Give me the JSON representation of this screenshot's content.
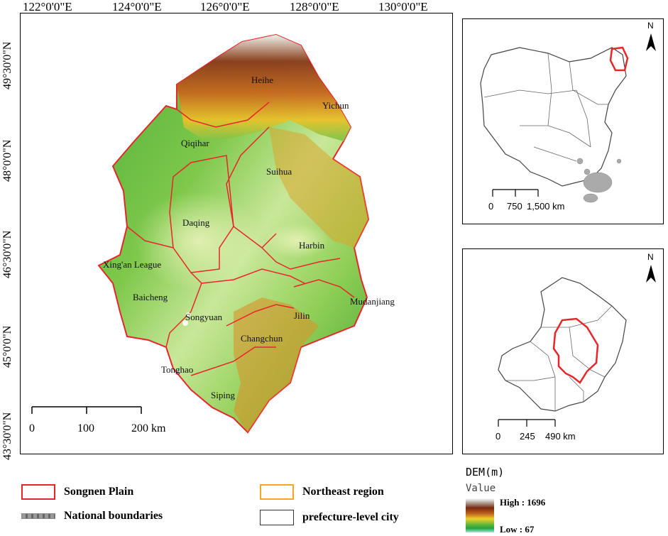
{
  "main_map": {
    "longitude_labels": [
      "122°0'0\"E",
      "124°0'0\"E",
      "126°0'0\"E",
      "128°0'0\"E",
      "130°0'0\"E"
    ],
    "latitude_labels": [
      "49°30'0\"N",
      "48°0'0\"N",
      "46°30'0\"N",
      "45°0'0\"N",
      "43°30'0\"N"
    ],
    "cities": [
      "Heihe",
      "Yichun",
      "Qiqihar",
      "Suihua",
      "Daqing",
      "Harbin",
      "Xing'an League",
      "Baicheng",
      "Mudanjiang",
      "Songyuan",
      "Jilin",
      "Changchun",
      "Tonghao",
      "Siping"
    ],
    "scale_bar": {
      "ticks": [
        "0",
        "100",
        "200 km"
      ]
    }
  },
  "inset_china": {
    "north_label": "N",
    "scale_ticks": [
      "0",
      "750",
      "1,500 km"
    ]
  },
  "inset_northeast": {
    "north_label": "N",
    "scale_ticks": [
      "0",
      "245",
      "490 km"
    ]
  },
  "legend": {
    "songnen": "Songnen Plain",
    "northeast": "Northeast region",
    "national": "National boundaries",
    "prefecture": "prefecture-level city",
    "colors": {
      "songnen": "#e8262a",
      "northeast": "#f5a623",
      "national": "#888888",
      "prefecture": "#333333"
    }
  },
  "dem_legend": {
    "title": "DEM(m)",
    "value_label": "Value",
    "high": "High : 1696",
    "low": "Low : 67"
  }
}
